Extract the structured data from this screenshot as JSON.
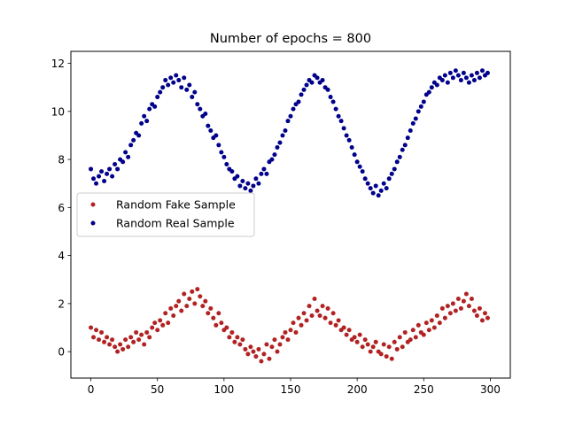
{
  "chart_data": {
    "type": "scatter",
    "title": "Number of epochs = 800",
    "xlabel": "",
    "ylabel": "",
    "xlim": [
      -15,
      315
    ],
    "ylim": [
      -1.1,
      12.5
    ],
    "xticks": [
      0,
      50,
      100,
      150,
      200,
      250,
      300
    ],
    "yticks": [
      0,
      2,
      4,
      6,
      8,
      10,
      12
    ],
    "grid": false,
    "legend_position": "center-left",
    "series": [
      {
        "name": "Random Fake Sample",
        "color": "#b22222",
        "marker": "dot",
        "x": [
          0,
          2,
          4,
          6,
          8,
          10,
          12,
          14,
          16,
          18,
          20,
          22,
          24,
          26,
          28,
          30,
          32,
          34,
          36,
          38,
          40,
          42,
          44,
          46,
          48,
          50,
          52,
          54,
          56,
          58,
          60,
          62,
          64,
          66,
          68,
          70,
          72,
          74,
          76,
          78,
          80,
          82,
          84,
          86,
          88,
          90,
          92,
          94,
          96,
          98,
          100,
          102,
          104,
          106,
          108,
          110,
          112,
          114,
          116,
          118,
          120,
          122,
          124,
          126,
          128,
          130,
          132,
          134,
          136,
          138,
          140,
          142,
          144,
          146,
          148,
          150,
          152,
          154,
          156,
          158,
          160,
          162,
          164,
          166,
          168,
          170,
          172,
          174,
          176,
          178,
          180,
          182,
          184,
          186,
          188,
          190,
          192,
          194,
          196,
          198,
          200,
          202,
          204,
          206,
          208,
          210,
          212,
          214,
          216,
          218,
          220,
          222,
          224,
          226,
          228,
          230,
          232,
          234,
          236,
          238,
          240,
          242,
          244,
          246,
          248,
          250,
          252,
          254,
          256,
          258,
          260,
          262,
          264,
          266,
          268,
          270,
          272,
          274,
          276,
          278,
          280,
          282,
          284,
          286,
          288,
          290,
          292,
          294,
          296,
          298
        ],
        "y": [
          1.0,
          0.6,
          0.9,
          0.5,
          0.8,
          0.4,
          0.6,
          0.3,
          0.5,
          0.2,
          0.0,
          0.3,
          0.1,
          0.5,
          0.2,
          0.6,
          0.4,
          0.8,
          0.5,
          0.7,
          0.3,
          0.8,
          0.6,
          1.0,
          1.2,
          0.9,
          1.3,
          1.1,
          1.6,
          1.2,
          1.8,
          1.5,
          1.9,
          2.1,
          1.7,
          2.4,
          1.9,
          2.2,
          2.5,
          2.0,
          2.6,
          2.3,
          1.9,
          2.1,
          1.6,
          1.8,
          1.4,
          1.1,
          1.6,
          1.2,
          0.9,
          1.0,
          0.6,
          0.8,
          0.4,
          0.6,
          0.3,
          0.5,
          0.1,
          -0.1,
          0.2,
          0.0,
          -0.2,
          0.1,
          -0.4,
          -0.1,
          0.3,
          -0.3,
          0.2,
          0.5,
          0.0,
          0.3,
          0.6,
          0.8,
          0.5,
          0.9,
          1.2,
          0.8,
          1.4,
          1.1,
          1.6,
          1.3,
          1.9,
          1.5,
          2.2,
          1.7,
          1.5,
          1.9,
          1.4,
          1.8,
          1.2,
          1.6,
          1.1,
          1.3,
          0.9,
          1.0,
          0.7,
          0.9,
          0.5,
          0.6,
          0.4,
          0.7,
          0.2,
          0.5,
          0.3,
          0.0,
          0.2,
          0.4,
          0.0,
          -0.1,
          0.3,
          -0.2,
          0.2,
          -0.3,
          0.4,
          0.1,
          0.6,
          0.2,
          0.8,
          0.4,
          0.5,
          0.9,
          0.6,
          1.1,
          0.8,
          0.7,
          1.2,
          0.9,
          1.3,
          1.0,
          1.5,
          1.2,
          1.8,
          1.4,
          1.9,
          1.6,
          2.0,
          1.7,
          2.2,
          1.8,
          2.1,
          2.4,
          1.9,
          2.2,
          1.7,
          1.5,
          1.8,
          1.3,
          1.6,
          1.4
        ]
      },
      {
        "name": "Random Real Sample",
        "color": "#00008b",
        "marker": "dot",
        "x": [
          0,
          2,
          4,
          6,
          8,
          10,
          12,
          14,
          16,
          18,
          20,
          22,
          24,
          26,
          28,
          30,
          32,
          34,
          36,
          38,
          40,
          42,
          44,
          46,
          48,
          50,
          52,
          54,
          56,
          58,
          60,
          62,
          64,
          66,
          68,
          70,
          72,
          74,
          76,
          78,
          80,
          82,
          84,
          86,
          88,
          90,
          92,
          94,
          96,
          98,
          100,
          102,
          104,
          106,
          108,
          110,
          112,
          114,
          116,
          118,
          120,
          122,
          124,
          126,
          128,
          130,
          132,
          134,
          136,
          138,
          140,
          142,
          144,
          146,
          148,
          150,
          152,
          154,
          156,
          158,
          160,
          162,
          164,
          166,
          168,
          170,
          172,
          174,
          176,
          178,
          180,
          182,
          184,
          186,
          188,
          190,
          192,
          194,
          196,
          198,
          200,
          202,
          204,
          206,
          208,
          210,
          212,
          214,
          216,
          218,
          220,
          222,
          224,
          226,
          228,
          230,
          232,
          234,
          236,
          238,
          240,
          242,
          244,
          246,
          248,
          250,
          252,
          254,
          256,
          258,
          260,
          262,
          264,
          266,
          268,
          270,
          272,
          274,
          276,
          278,
          280,
          282,
          284,
          286,
          288,
          290,
          292,
          294,
          296,
          298
        ],
        "y": [
          7.6,
          7.2,
          7.0,
          7.3,
          7.5,
          7.1,
          7.4,
          7.6,
          7.3,
          7.8,
          7.6,
          8.0,
          7.9,
          8.3,
          8.1,
          8.6,
          8.8,
          9.1,
          9.0,
          9.5,
          9.8,
          9.6,
          10.1,
          10.3,
          10.2,
          10.6,
          10.8,
          11.0,
          11.3,
          11.1,
          11.4,
          11.2,
          11.5,
          11.3,
          11.0,
          11.4,
          10.9,
          11.1,
          10.6,
          10.8,
          10.3,
          10.1,
          9.8,
          9.9,
          9.4,
          9.2,
          8.9,
          9.0,
          8.6,
          8.3,
          8.1,
          7.8,
          7.6,
          7.5,
          7.2,
          7.3,
          6.9,
          7.1,
          6.8,
          7.0,
          6.7,
          6.9,
          7.2,
          7.0,
          7.4,
          7.6,
          7.4,
          7.9,
          8.0,
          8.2,
          8.5,
          8.7,
          9.0,
          9.2,
          9.6,
          9.8,
          10.1,
          10.3,
          10.4,
          10.7,
          10.9,
          11.1,
          11.3,
          11.2,
          11.5,
          11.4,
          11.2,
          11.3,
          11.0,
          10.9,
          10.6,
          10.4,
          10.1,
          9.8,
          9.6,
          9.3,
          9.0,
          8.8,
          8.5,
          8.2,
          7.9,
          7.7,
          7.5,
          7.2,
          7.0,
          6.8,
          6.6,
          6.9,
          6.5,
          6.7,
          7.0,
          6.8,
          7.2,
          7.4,
          7.6,
          7.9,
          8.1,
          8.4,
          8.6,
          8.9,
          9.2,
          9.5,
          9.7,
          10.0,
          10.2,
          10.4,
          10.7,
          10.8,
          11.0,
          11.2,
          11.1,
          11.4,
          11.3,
          11.5,
          11.2,
          11.6,
          11.4,
          11.7,
          11.5,
          11.3,
          11.6,
          11.4,
          11.2,
          11.5,
          11.3,
          11.6,
          11.4,
          11.7,
          11.5,
          11.6
        ]
      }
    ]
  }
}
